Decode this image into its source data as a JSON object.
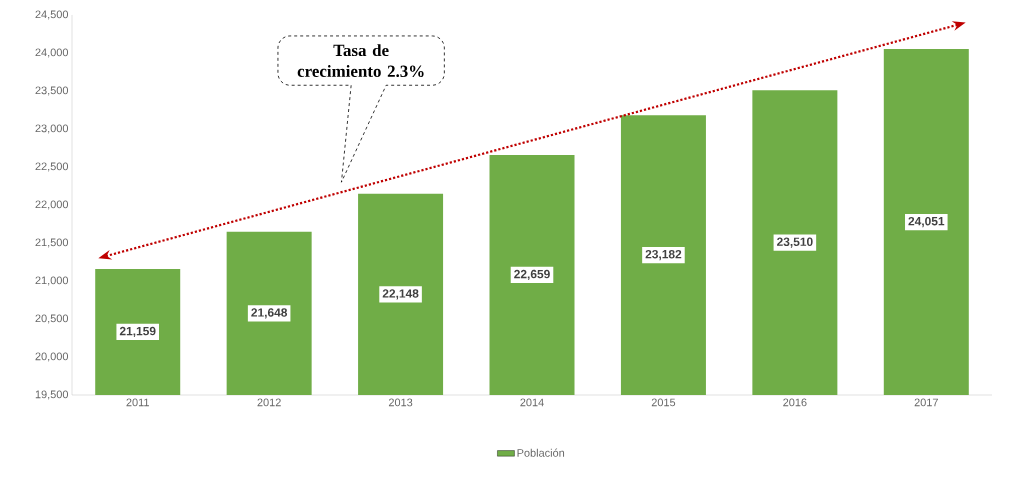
{
  "chart_data": {
    "type": "bar",
    "categories": [
      "2011",
      "2012",
      "2013",
      "2014",
      "2015",
      "2016",
      "2017"
    ],
    "series": [
      {
        "name": "Población",
        "color": "#70ad47",
        "values": [
          21159,
          21648,
          22148,
          22659,
          23182,
          23510,
          24051
        ],
        "value_labels": [
          "21,159",
          "21,648",
          "22,148",
          "22,659",
          "23,182",
          "23,510",
          "24,051"
        ]
      }
    ],
    "ylim": [
      19500,
      24500
    ],
    "yticks": [
      {
        "value": 19500,
        "label": "19,500"
      },
      {
        "value": 20000,
        "label": "20,000"
      },
      {
        "value": 20500,
        "label": "20,500"
      },
      {
        "value": 21000,
        "label": "21,000"
      },
      {
        "value": 21500,
        "label": "21,500"
      },
      {
        "value": 22000,
        "label": "22,000"
      },
      {
        "value": 22500,
        "label": "22,500"
      },
      {
        "value": 23000,
        "label": "23,000"
      },
      {
        "value": 23500,
        "label": "23,500"
      },
      {
        "value": 24000,
        "label": "24,000"
      },
      {
        "value": 24500,
        "label": "24,500"
      }
    ],
    "annotations": [
      "Tasa de crecimiento 2.3%"
    ],
    "legend": "bottom",
    "grid": false
  }
}
